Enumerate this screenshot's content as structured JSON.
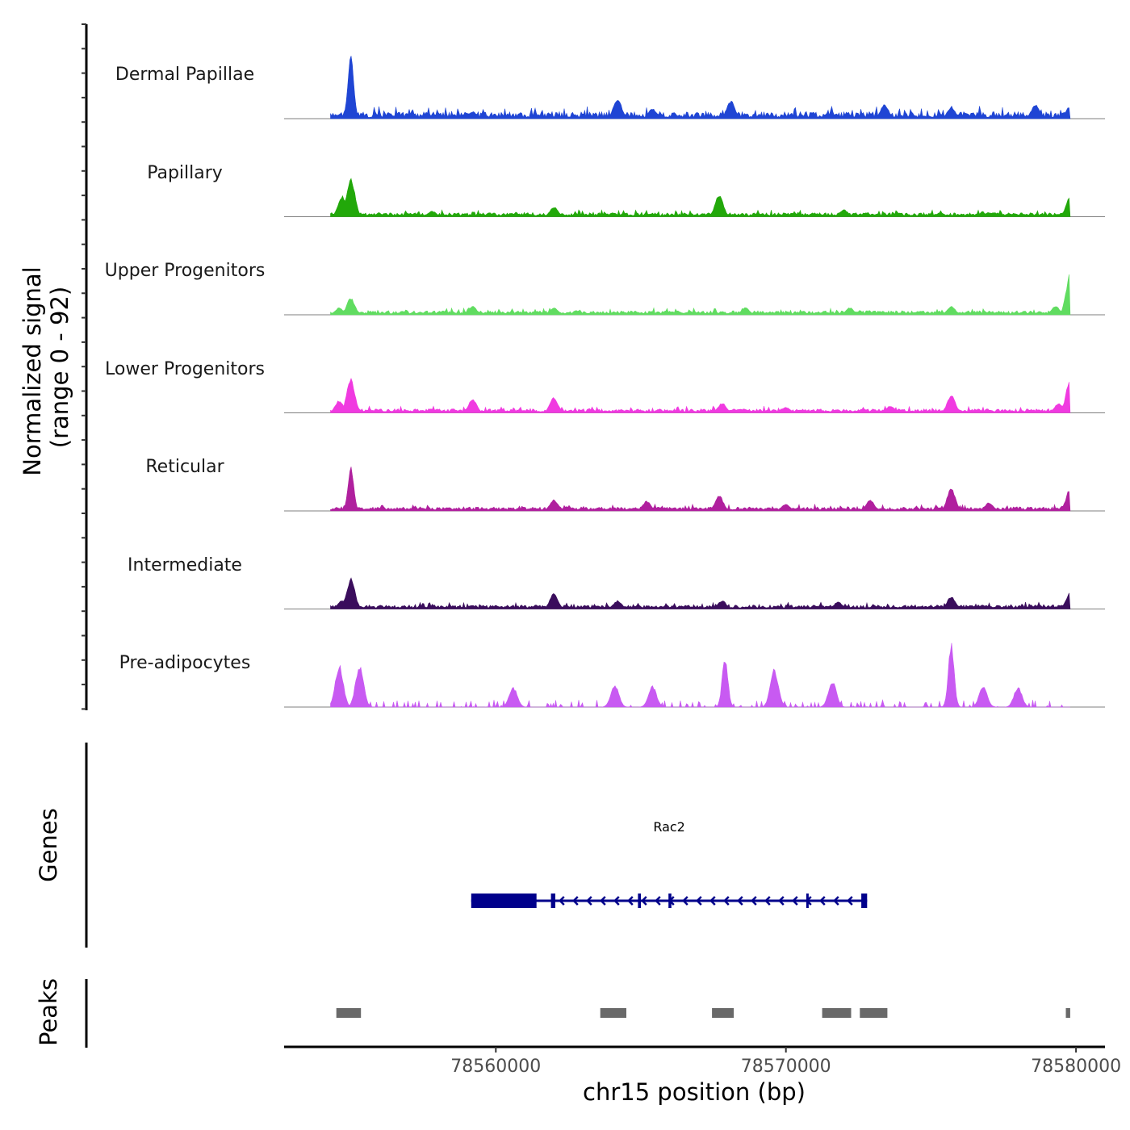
{
  "chart_data": {
    "type": "area",
    "title": "",
    "xlabel": "chr15 position (bp)",
    "ylabel_line1": "Normalized signal",
    "ylabel_line2": "(range 0 - 92)",
    "genes_label": "Genes",
    "peaks_label": "Peaks",
    "xlim": [
      78552700,
      78581000
    ],
    "ylim": [
      0,
      92
    ],
    "x_ticks": [
      {
        "value": 78560000,
        "label": "78560000"
      },
      {
        "value": 78570000,
        "label": "78570000"
      },
      {
        "value": 78580000,
        "label": "78580000"
      }
    ],
    "signal_range": [
      78554300,
      78579800
    ],
    "tracks": [
      {
        "name": "Dermal Papillae",
        "color": "#1f45d4",
        "peaks": [
          [
            78555000,
            92
          ],
          [
            78559200,
            10
          ],
          [
            78564200,
            28
          ],
          [
            78565400,
            14
          ],
          [
            78568100,
            26
          ],
          [
            78573400,
            20
          ],
          [
            78575700,
            16
          ],
          [
            78578600,
            20
          ],
          [
            78579800,
            18
          ]
        ]
      },
      {
        "name": "Papillary",
        "color": "#22a80a",
        "peaks": [
          [
            78554700,
            30
          ],
          [
            78555000,
            55
          ],
          [
            78557800,
            8
          ],
          [
            78562000,
            14
          ],
          [
            78567700,
            32
          ],
          [
            78572000,
            10
          ],
          [
            78577000,
            6
          ],
          [
            78579800,
            28
          ]
        ]
      },
      {
        "name": "Upper Progenitors",
        "color": "#60dc60",
        "peaks": [
          [
            78554600,
            10
          ],
          [
            78555000,
            24
          ],
          [
            78559200,
            12
          ],
          [
            78562000,
            10
          ],
          [
            78568600,
            10
          ],
          [
            78572200,
            10
          ],
          [
            78575700,
            12
          ],
          [
            78579300,
            12
          ],
          [
            78579800,
            60
          ]
        ]
      },
      {
        "name": "Lower Progenitors",
        "color": "#f03ae0",
        "peaks": [
          [
            78554600,
            18
          ],
          [
            78555000,
            48
          ],
          [
            78559200,
            20
          ],
          [
            78562000,
            22
          ],
          [
            78567800,
            14
          ],
          [
            78570000,
            8
          ],
          [
            78573600,
            10
          ],
          [
            78575700,
            25
          ],
          [
            78579400,
            14
          ],
          [
            78579800,
            50
          ]
        ]
      },
      {
        "name": "Reticular",
        "color": "#b0209e",
        "peaks": [
          [
            78555000,
            62
          ],
          [
            78562000,
            16
          ],
          [
            78565200,
            14
          ],
          [
            78567700,
            22
          ],
          [
            78570000,
            10
          ],
          [
            78572900,
            16
          ],
          [
            78575700,
            33
          ],
          [
            78577000,
            12
          ],
          [
            78579800,
            32
          ]
        ]
      },
      {
        "name": "Intermediate",
        "color": "#3a0d5c",
        "peaks": [
          [
            78554700,
            12
          ],
          [
            78555000,
            44
          ],
          [
            78562000,
            22
          ],
          [
            78564200,
            12
          ],
          [
            78567800,
            12
          ],
          [
            78571800,
            10
          ],
          [
            78575700,
            18
          ],
          [
            78579800,
            24
          ]
        ]
      },
      {
        "name": "Pre-adipocytes",
        "color": "#c85af2",
        "peaks": [
          [
            78554600,
            60
          ],
          [
            78555300,
            60
          ],
          [
            78560600,
            28
          ],
          [
            78564100,
            32
          ],
          [
            78565400,
            30
          ],
          [
            78567900,
            70
          ],
          [
            78569600,
            55
          ],
          [
            78571600,
            38
          ],
          [
            78575700,
            92
          ],
          [
            78576800,
            30
          ],
          [
            78578000,
            28
          ]
        ]
      }
    ],
    "gene": {
      "name": "Rac2",
      "strand": "-",
      "color": "#00008b",
      "start": 78559150,
      "end": 78572800,
      "exons": [
        [
          78559150,
          78561400
        ],
        [
          78561900,
          78562050
        ],
        [
          78564900,
          78565000
        ],
        [
          78565950,
          78566050
        ],
        [
          78570700,
          78570750
        ],
        [
          78572600,
          78572800
        ]
      ]
    },
    "peaks": {
      "color": "#696969",
      "regions": [
        [
          78554500,
          78555350
        ],
        [
          78563600,
          78564500
        ],
        [
          78567450,
          78568200
        ],
        [
          78571250,
          78572250
        ],
        [
          78572550,
          78573500
        ],
        [
          78579650,
          78579800
        ]
      ]
    }
  }
}
